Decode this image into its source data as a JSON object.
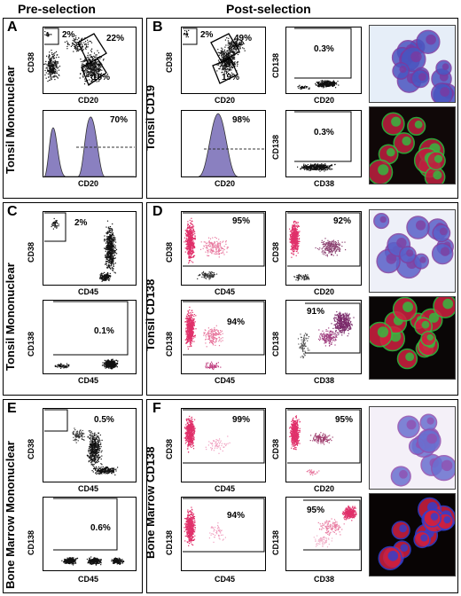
{
  "headers": {
    "pre": "Pre-selection",
    "post": "Post-selection"
  },
  "panels": {
    "A": {
      "letter": "A",
      "side": "Tonsil Mononuclear",
      "top": {
        "x": "CD20",
        "y": "CD38",
        "gates": [
          "2%",
          "22%",
          "18%"
        ]
      },
      "hist": {
        "x": "CD20",
        "pct": "70%"
      }
    },
    "B": {
      "letter": "B",
      "side": "Tonsil CD19",
      "p1": {
        "x": "CD20",
        "y": "CD38",
        "gates": [
          "2%",
          "49%",
          "19%"
        ]
      },
      "p2": {
        "x": "CD20",
        "y": "CD138",
        "pct": "0.3%"
      },
      "p3": {
        "x": "CD20",
        "pct": "98%"
      },
      "p4": {
        "x": "CD38",
        "y": "CD138",
        "pct": "0.3%"
      }
    },
    "C": {
      "letter": "C",
      "side": "Tonsil Mononuclear",
      "p1": {
        "x": "CD45",
        "y": "CD38",
        "pct": "2%"
      },
      "p2": {
        "x": "CD45",
        "y": "CD138",
        "pct": "0.1%"
      }
    },
    "D": {
      "letter": "D",
      "side": "Tonsil CD138",
      "p1": {
        "x": "CD45",
        "y": "CD38",
        "pct": "95%"
      },
      "p2": {
        "x": "CD20",
        "y": "CD38",
        "pct": "92%"
      },
      "p3": {
        "x": "CD45",
        "y": "CD138",
        "pct": "94%"
      },
      "p4": {
        "x": "CD38",
        "y": "CD138",
        "pct": "91%"
      }
    },
    "E": {
      "letter": "E",
      "side": "Bone Marrow Mononuclear",
      "p1": {
        "x": "CD45",
        "y": "CD38",
        "pct": "0.5%"
      },
      "p2": {
        "x": "CD45",
        "y": "CD138",
        "pct": "0.6%"
      }
    },
    "F": {
      "letter": "F",
      "side": "Bone Marrow CD138",
      "p1": {
        "x": "CD45",
        "y": "CD38",
        "pct": "99%"
      },
      "p2": {
        "x": "CD20",
        "y": "CD38",
        "pct": "95%"
      },
      "p3": {
        "x": "CD45",
        "y": "CD138",
        "pct": "94%"
      },
      "p4": {
        "x": "CD38",
        "y": "CD138",
        "pct": "95%"
      }
    }
  },
  "colors": {
    "dots_black": "#111111",
    "dots_pink": "#e0306a",
    "hist_fill": "#8a80c0",
    "micrograph_blue": "#4a55c0",
    "fluor_red": "#d02040",
    "fluor_green": "#30c040"
  }
}
